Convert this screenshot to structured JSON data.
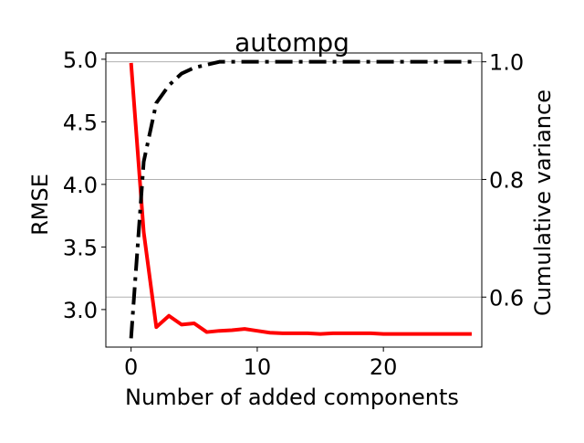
{
  "chart_data": {
    "type": "line",
    "title": "autompg",
    "xlabel": "Number of added components",
    "ylabel_left": "RMSE",
    "ylabel_right": "Cumulative variance",
    "xlim": [
      -2,
      27.8
    ],
    "ylim_left": [
      2.7,
      5.05
    ],
    "ylim_right": [
      0.515,
      1.015
    ],
    "xticks": [
      0,
      10,
      20
    ],
    "yticks_left": [
      3.0,
      3.5,
      4.0,
      4.5,
      5.0
    ],
    "yticks_right": [
      0.6,
      0.8,
      1.0
    ],
    "grid": "horizontal lines at right-axis ticks",
    "series": [
      {
        "axis": "left",
        "color": "#ff0000",
        "linestyle": "solid",
        "x": [
          0,
          1,
          2,
          3,
          4,
          5,
          6,
          7,
          8,
          9,
          10,
          11,
          12,
          13,
          14,
          15,
          16,
          17,
          18,
          19,
          20,
          21,
          22,
          23,
          24,
          25,
          26,
          27
        ],
        "values": [
          4.97,
          3.62,
          2.86,
          2.95,
          2.88,
          2.89,
          2.82,
          2.83,
          2.835,
          2.845,
          2.83,
          2.815,
          2.81,
          2.81,
          2.81,
          2.805,
          2.81,
          2.81,
          2.81,
          2.81,
          2.805,
          2.805,
          2.805,
          2.805,
          2.805,
          2.805,
          2.805,
          2.805
        ]
      },
      {
        "axis": "right",
        "color": "#000000",
        "linestyle": "dashdot",
        "x": [
          0,
          1,
          2,
          3,
          4,
          5,
          6,
          7,
          8,
          9,
          10,
          11,
          12,
          13,
          14,
          15,
          16,
          17,
          18,
          19,
          20,
          21,
          22,
          23,
          24,
          25,
          26,
          27
        ],
        "values": [
          0.53,
          0.83,
          0.93,
          0.96,
          0.98,
          0.99,
          0.995,
          1.0,
          1.0,
          1.0,
          1.0,
          1.0,
          1.0,
          1.0,
          1.0,
          1.0,
          1.0,
          1.0,
          1.0,
          1.0,
          1.0,
          1.0,
          1.0,
          1.0,
          1.0,
          1.0,
          1.0,
          1.0
        ]
      }
    ]
  },
  "colors": {
    "left_axis_label": "#ff0000",
    "grid": "#b0b0b0"
  }
}
